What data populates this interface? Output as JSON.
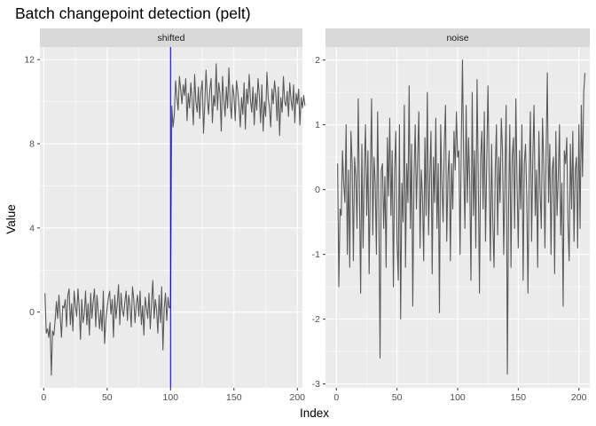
{
  "chart_data": {
    "type": "line",
    "title": "Batch changepoint detection (pelt)",
    "xlabel": "Index",
    "ylabel": "Value",
    "panels": [
      {
        "strip": "shifted",
        "xlim": [
          -3,
          204
        ],
        "ylim": [
          -3.6,
          12.6
        ],
        "x_ticks": [
          0,
          50,
          100,
          150,
          200
        ],
        "y_ticks": [
          0,
          4,
          8,
          12
        ],
        "changepoint": 100,
        "changepoint_color": "#0000ff",
        "series": {
          "x_start": 1,
          "values": [
            0.9,
            -1.0,
            -0.8,
            -1.2,
            -0.5,
            -3.0,
            -0.9,
            -1.1,
            -0.4,
            0.5,
            -0.3,
            0.8,
            -0.2,
            -1.2,
            0.3,
            0.2,
            0.6,
            -0.7,
            0.8,
            1.1,
            -0.6,
            0.4,
            -0.9,
            1.0,
            0.3,
            -0.2,
            1.1,
            0.2,
            -1.3,
            0.6,
            -0.5,
            -0.1,
            1.0,
            -0.6,
            0.4,
            -1.1,
            0.9,
            -0.3,
            0.5,
            1.1,
            -0.7,
            0.8,
            0.0,
            -0.8,
            0.1,
            -0.9,
            1.0,
            -1.5,
            -0.4,
            0.2,
            0.7,
            1.0,
            -0.1,
            0.6,
            -1.2,
            0.8,
            -0.3,
            0.4,
            1.3,
            -0.6,
            0.9,
            0.1,
            -0.2,
            0.5,
            1.0,
            -0.4,
            0.8,
            0.3,
            -0.7,
            1.2,
            0.6,
            -0.5,
            0.4,
            0.8,
            -0.2,
            1.0,
            -0.6,
            0.3,
            -1.1,
            0.7,
            0.2,
            -0.3,
            0.9,
            -0.8,
            0.4,
            1.5,
            -0.3,
            0.6,
            0.1,
            -1.0,
            0.8,
            -0.5,
            1.2,
            -1.8,
            0.2,
            0.9,
            -0.4,
            0.7,
            0.2,
            0.3,
            9.8,
            8.8,
            9.4,
            11.0,
            10.2,
            9.6,
            11.2,
            10.6,
            9.9,
            10.8,
            10.3,
            11.1,
            9.1,
            10.4,
            9.7,
            10.9,
            10.1,
            8.9,
            11.3,
            10.0,
            9.5,
            10.7,
            9.2,
            10.5,
            11.0,
            8.5,
            9.9,
            11.5,
            10.2,
            9.4,
            10.6,
            11.1,
            9.0,
            10.3,
            9.8,
            11.8,
            9.6,
            10.9,
            10.4,
            8.6,
            11.2,
            10.1,
            9.3,
            10.7,
            9.7,
            11.6,
            10.0,
            9.2,
            10.8,
            10.3,
            9.1,
            11.0,
            10.5,
            9.8,
            8.8,
            10.2,
            9.4,
            10.9,
            8.7,
            10.6,
            9.9,
            11.3,
            10.1,
            9.5,
            10.7,
            8.9,
            10.4,
            9.6,
            11.1,
            10.3,
            9.0,
            10.8,
            8.6,
            10.0,
            9.3,
            11.4,
            10.2,
            9.7,
            8.8,
            10.6,
            9.9,
            11.0,
            10.4,
            9.1,
            10.7,
            8.4,
            10.2,
            9.5,
            11.2,
            10.0,
            9.8,
            10.5,
            9.3,
            10.9,
            10.1,
            9.6,
            10.8,
            9.0,
            10.4,
            9.9,
            10.6,
            8.9,
            10.2,
            9.7,
            10.3,
            9.8
          ]
        }
      },
      {
        "strip": "noise",
        "xlim": [
          -9,
          209
        ],
        "ylim": [
          -3.06,
          2.2
        ],
        "x_ticks": [
          0,
          50,
          100,
          150,
          200
        ],
        "y_ticks": [
          -3,
          -2,
          -1,
          0,
          1,
          2
        ],
        "series": {
          "x_start": 1,
          "values": [
            0.4,
            -1.5,
            -0.3,
            -0.4,
            0.6,
            0.1,
            -0.2,
            1.0,
            -1.0,
            0.3,
            -1.2,
            0.9,
            0.4,
            -1.1,
            0.5,
            0.2,
            -0.6,
            1.4,
            -0.1,
            -1.6,
            0.7,
            -0.9,
            0.3,
            1.0,
            -0.4,
            0.6,
            -1.3,
            0.2,
            1.4,
            -0.7,
            0.5,
            0.1,
            -1.0,
            1.2,
            -0.3,
            -2.6,
            0.3,
            0.4,
            -0.6,
            0.2,
            -1.2,
            0.8,
            -0.1,
            1.1,
            -0.4,
            0.6,
            -1.5,
            0.3,
            0.9,
            -0.8,
            -1.4,
            1.0,
            -2.0,
            0.1,
            -0.5,
            1.3,
            -1.2,
            0.4,
            -0.2,
            1.6,
            -0.6,
            0.7,
            -1.8,
            0.2,
            1.0,
            -0.3,
            0.5,
            1.2,
            -0.9,
            0.3,
            -0.1,
            -1.1,
            0.8,
            -0.4,
            1.5,
            -0.7,
            0.2,
            0.9,
            -1.3,
            0.5,
            -0.2,
            1.1,
            -0.6,
            0.4,
            -1.9,
            1.0,
            0.1,
            -0.5,
            0.7,
            1.3,
            -0.8,
            0.2,
            0.6,
            -1.1,
            0.4,
            -0.3,
            0.9,
            0.3,
            1.2,
            0.5,
            0.6,
            -1.0,
            0.7,
            2.0,
            0.4,
            -0.6,
            1.3,
            -0.2,
            0.8,
            0.1,
            -1.4,
            1.5,
            -0.4,
            0.6,
            -0.9,
            1.7,
            0.2,
            -1.6,
            0.5,
            0.9,
            -0.3,
            1.2,
            -0.8,
            0.4,
            1.6,
            0.2,
            -1.1,
            0.7,
            -0.5,
            -1.2,
            0.3,
            1.0,
            -0.7,
            0.5,
            -0.2,
            1.1,
            0.6,
            -1.0,
            0.2,
            1.3,
            -2.85,
            -0.3,
            1.0,
            -1.2,
            0.5,
            0.8,
            -0.6,
            1.4,
            0.1,
            -0.9,
            0.6,
            -0.3,
            1.0,
            -1.4,
            0.4,
            0.7,
            -0.1,
            -1.6,
            0.2,
            1.2,
            -0.8,
            0.5,
            1.3,
            -0.4,
            0.3,
            -1.2,
            0.9,
            0.0,
            -0.6,
            1.1,
            0.4,
            -0.9,
            0.6,
            1.8,
            -0.2,
            0.7,
            -1.0,
            0.3,
            0.5,
            -1.3,
            0.9,
            -0.4,
            0.2,
            1.0,
            -0.7,
            0.1,
            -1.8,
            0.6,
            0.4,
            0.8,
            -0.5,
            -1.1,
            0.7,
            -0.3,
            0.9,
            -0.8,
            0.3,
            0.5,
            -0.9,
            1.0,
            -0.6,
            1.3,
            0.2,
            1.5,
            1.8
          ]
        }
      }
    ]
  }
}
